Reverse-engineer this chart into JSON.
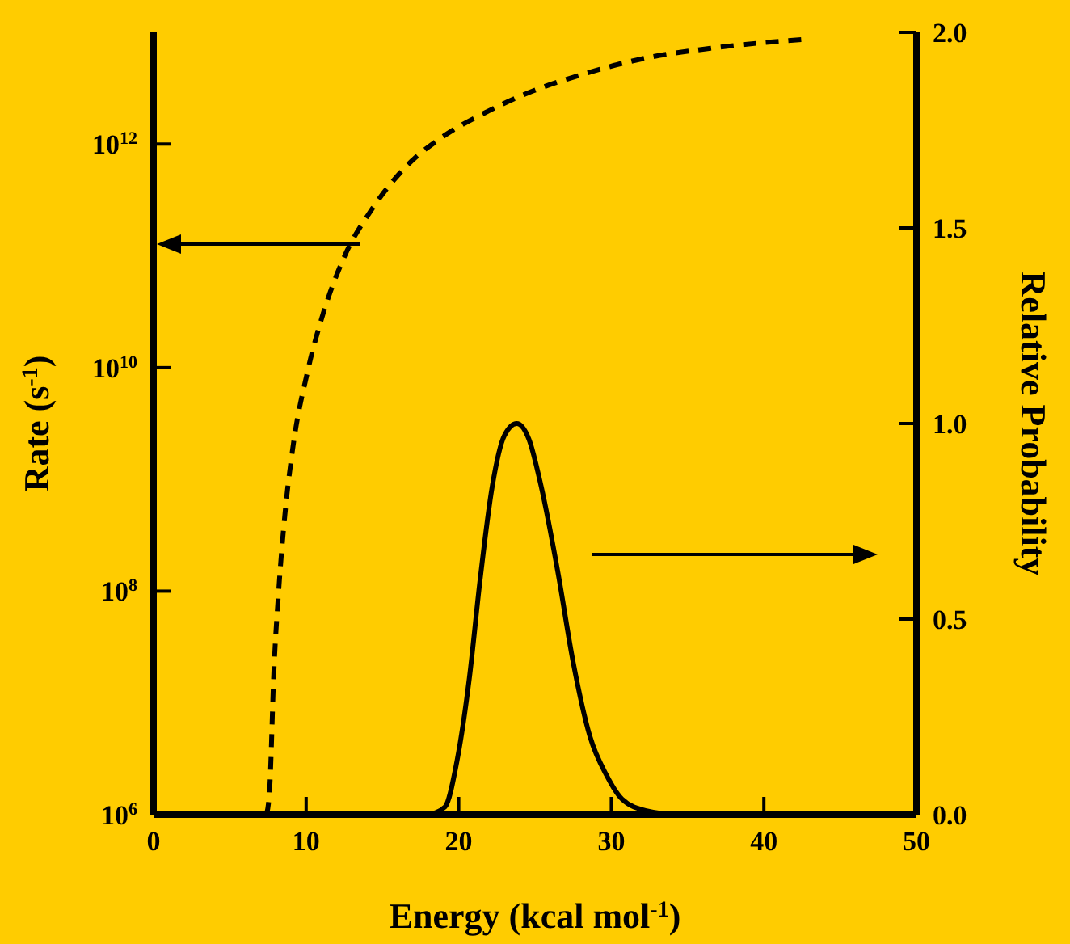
{
  "chart_data": {
    "type": "line",
    "xlabel": "Energy (kcal mol$^{-1}$)",
    "ylabel": "Rate (s$^{-1}$)",
    "y2label": "Relative Probability",
    "log": "y",
    "marker": "none",
    "xlim": [
      0,
      50
    ],
    "xticks": [
      0,
      10,
      20,
      30,
      40,
      50
    ],
    "ylim": [
      1000000,
      10000000000000
    ],
    "yticks": [
      {
        "value": 1000000,
        "label": "10$^{6}$"
      },
      {
        "value": 100000000,
        "label": "10$^{8}$"
      },
      {
        "value": 10000000000,
        "label": "10$^{10}$"
      },
      {
        "value": 1000000000000,
        "label": "10$^{12}$"
      }
    ],
    "y2lim": [
      0,
      2
    ],
    "y2ticks": [
      {
        "value": 0,
        "label": "0.0"
      },
      {
        "value": 0.5,
        "label": "0.5"
      },
      {
        "value": 1,
        "label": "1.0"
      },
      {
        "value": 1.5,
        "label": "1.5"
      },
      {
        "value": 2,
        "label": "2.0"
      }
    ],
    "series": [
      {
        "color": "#000000",
        "line_style": "dashed",
        "x": [
          7.4,
          7.6,
          7.9,
          8.2,
          8.6,
          9.1,
          10.1,
          11.1,
          12.5,
          14.3,
          16.4,
          19.1,
          21.7,
          24.9,
          28.1,
          32.3,
          36.5,
          42.9
        ],
        "values": [
          1000000,
          1600000,
          21000000,
          100000000,
          470000000,
          1800000000,
          9300000000,
          30000000000,
          98000000000,
          260000000000,
          600000000000,
          1200000000000,
          1900000000000,
          3000000000000,
          4200000000000,
          5900000000000,
          7200000000000,
          8700000000000
        ]
      },
      {
        "color": "#000000",
        "line_style": "solid",
        "axis": "y2",
        "x": [
          18.0,
          19.1,
          19.9,
          20.7,
          21.4,
          22.2,
          23.0,
          23.8,
          24.6,
          25.4,
          26.5,
          27.5,
          28.6,
          29.7,
          30.7,
          32.3,
          34.4,
          36.0
        ],
        "values": [
          0,
          0.02,
          0.14,
          0.35,
          0.6,
          0.84,
          0.97,
          1.0,
          0.96,
          0.84,
          0.62,
          0.39,
          0.2,
          0.1,
          0.04,
          0.01,
          0,
          0
        ]
      }
    ]
  }
}
